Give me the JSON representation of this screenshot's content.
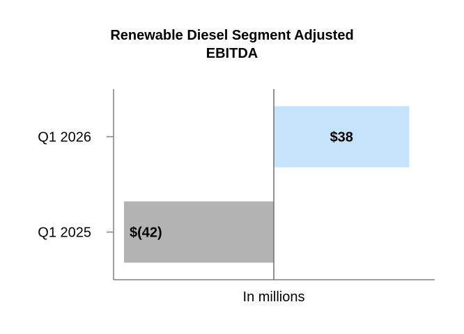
{
  "chart_data": {
    "type": "bar",
    "orientation": "horizontal",
    "title_lines": [
      "Renewable Diesel Segment Adjusted",
      "EBITDA"
    ],
    "xlabel": "In millions",
    "ylabel": "",
    "categories": [
      "Q1 2026",
      "Q1 2025"
    ],
    "values": [
      38,
      -42
    ],
    "data_labels": [
      "$38",
      "$(42)"
    ],
    "colors": [
      "#c5e3fb",
      "#b3b3b3"
    ],
    "xlim": [
      -45,
      45
    ],
    "grid": false,
    "legend": "none"
  }
}
